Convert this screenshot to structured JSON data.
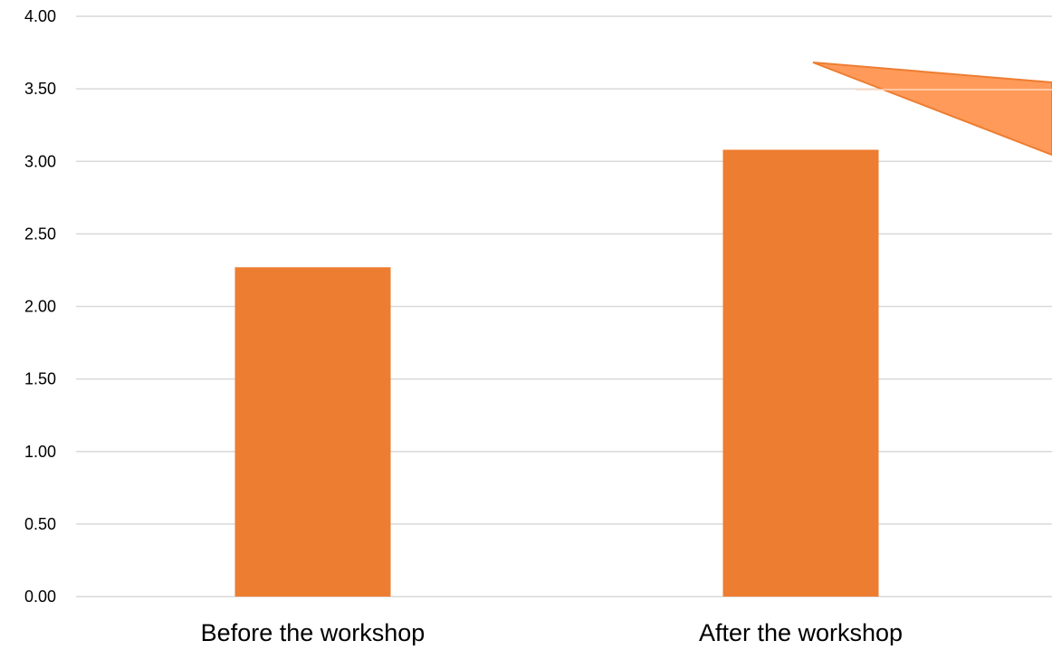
{
  "chart_data": {
    "type": "bar",
    "title": "",
    "xlabel": "",
    "ylabel": "",
    "categories": [
      "Before the workshop",
      "After the workshop"
    ],
    "values": [
      2.27,
      3.08
    ],
    "ylim": [
      0,
      4
    ],
    "yticks": [
      "0.00",
      "0.50",
      "1.00",
      "1.50",
      "2.00",
      "2.50",
      "3.00",
      "3.50",
      "4.00"
    ],
    "grid": true,
    "legend": "none",
    "annotation": "orange callout arrow pointing to the top of the second bar from the top-right corner"
  },
  "colors": {
    "bar": "#ED7D31",
    "callout_fill": "#FF9A5A",
    "callout_stroke": "#ED7D31",
    "grid": "#D9D9D9"
  }
}
